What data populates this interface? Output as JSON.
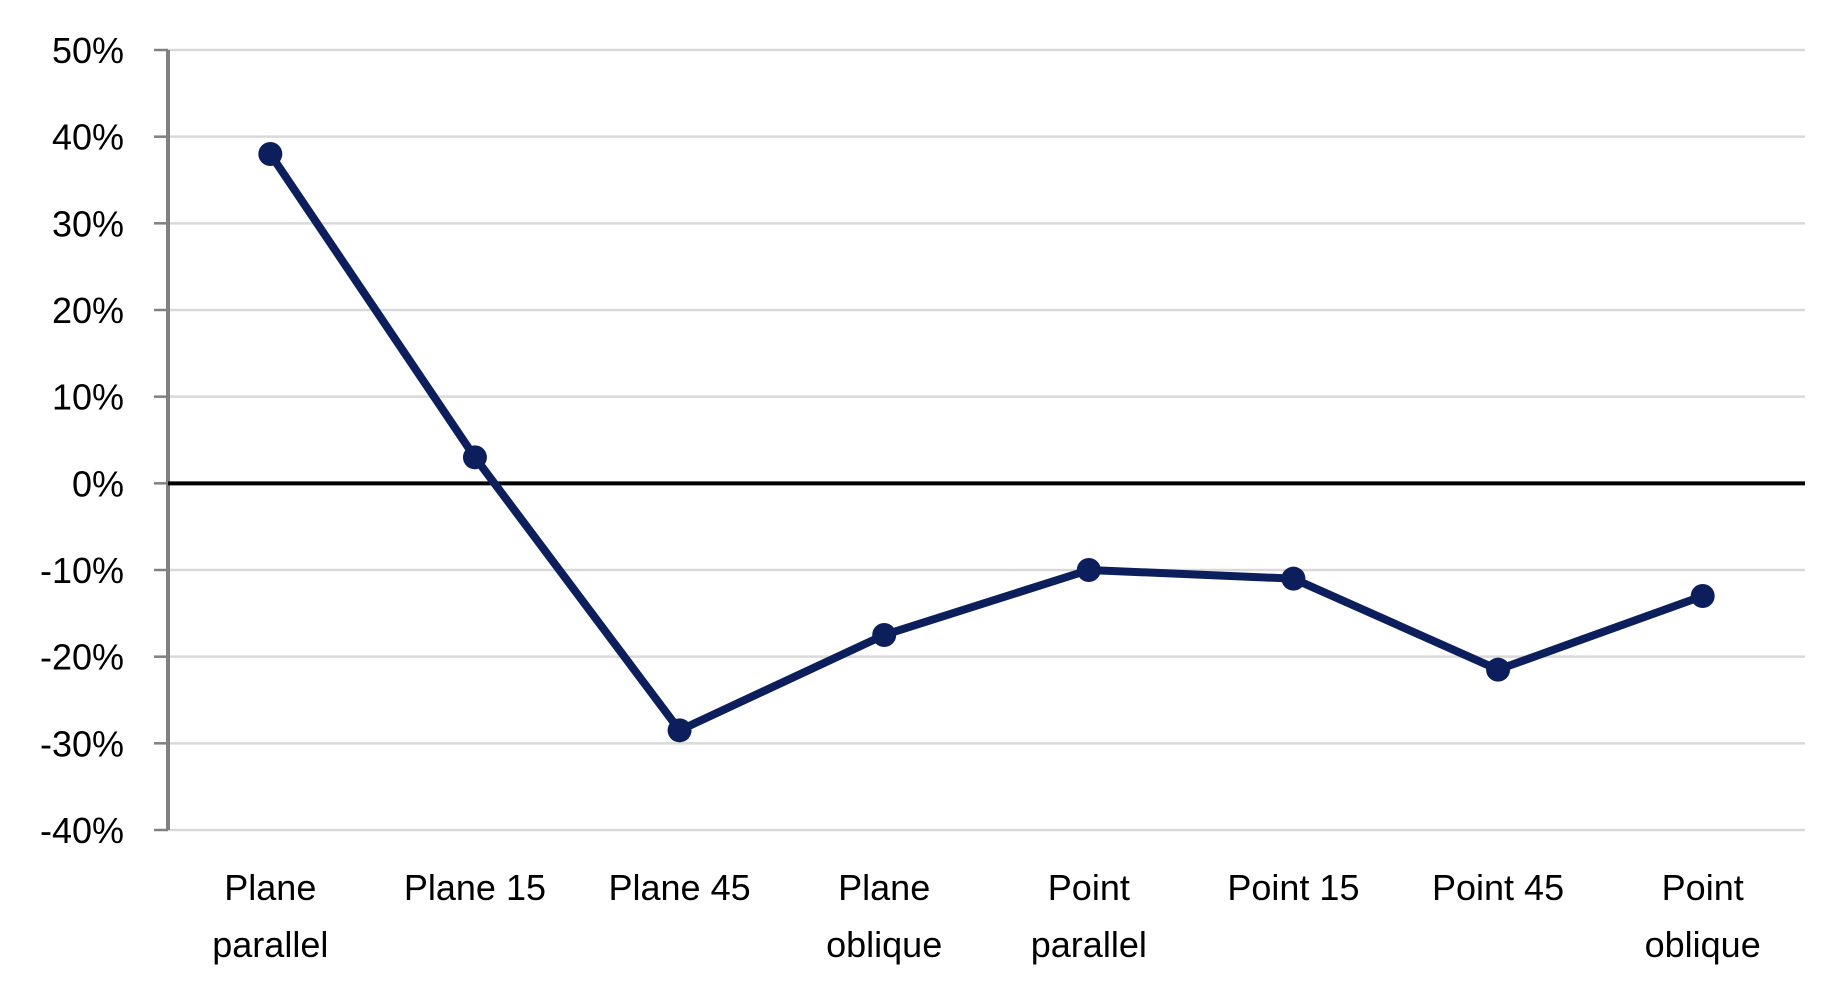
{
  "chart_data": {
    "type": "line",
    "title": "",
    "xlabel": "",
    "ylabel": "",
    "categories": [
      [
        "Plane",
        "parallel"
      ],
      [
        "Plane 15"
      ],
      [
        "Plane 45"
      ],
      [
        "Plane",
        "oblique"
      ],
      [
        "Point",
        "parallel"
      ],
      [
        "Point 15"
      ],
      [
        "Point 45"
      ],
      [
        "Point",
        "oblique"
      ]
    ],
    "series": [
      {
        "values": [
          38,
          3,
          -28.5,
          -17.5,
          -10,
          -11,
          -21.5,
          -13
        ]
      }
    ],
    "ylim": [
      -40,
      50
    ],
    "yticks": [
      50,
      40,
      30,
      20,
      10,
      0,
      -10,
      -20,
      -30,
      -40
    ],
    "ytick_labels": [
      "50%",
      "40%",
      "30%",
      "20%",
      "10%",
      "0%",
      "-10%",
      "-20%",
      "-30%",
      "-40%"
    ],
    "grid": true,
    "legend": "none",
    "colors": {
      "line": "#0c1f5c",
      "grid": "#d9d9d9",
      "zero_line": "#000000",
      "axis": "#808080"
    }
  }
}
